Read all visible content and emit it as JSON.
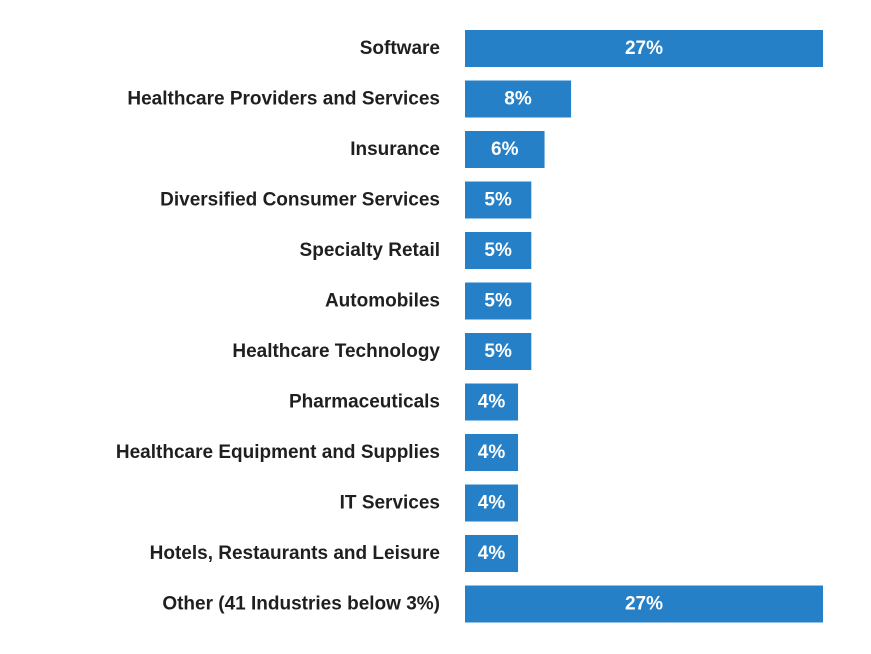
{
  "chart_data": {
    "type": "bar",
    "orientation": "horizontal",
    "title": "",
    "xlabel": "",
    "ylabel": "",
    "unit": "%",
    "bar_color": "#2580c8",
    "xlim": [
      0,
      27
    ],
    "grid": false,
    "legend": "none",
    "categories": [
      "Software",
      "Healthcare Providers and Services",
      "Insurance",
      "Diversified Consumer Services",
      "Specialty Retail",
      "Automobiles",
      "Healthcare Technology",
      "Pharmaceuticals",
      "Healthcare Equipment and Supplies",
      "IT Services",
      "Hotels, Restaurants and Leisure",
      "Other (41 Industries below 3%)"
    ],
    "values": [
      27,
      8,
      6,
      5,
      5,
      5,
      5,
      4,
      4,
      4,
      4,
      27
    ],
    "value_labels": [
      "27%",
      "8%",
      "6%",
      "5%",
      "5%",
      "5%",
      "5%",
      "4%",
      "4%",
      "4%",
      "4%",
      "27%"
    ]
  }
}
